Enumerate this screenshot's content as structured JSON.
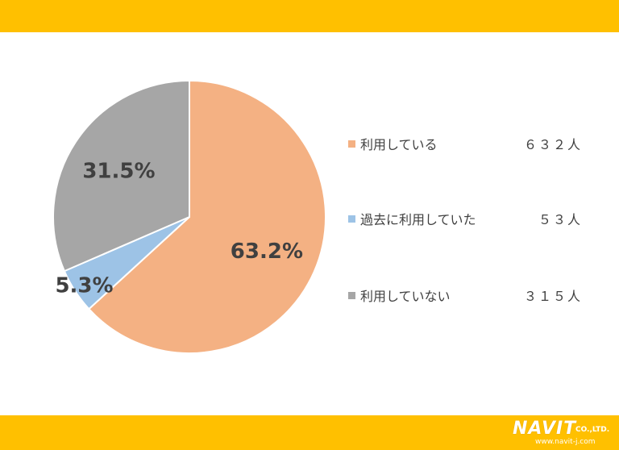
{
  "chart_data": {
    "type": "pie",
    "slices": [
      {
        "label": "利用している",
        "count": "６３２人",
        "percent": 63.2,
        "display": "63.2%",
        "color": "#F4B183"
      },
      {
        "label": "過去に利用していた",
        "count": "５３人",
        "percent": 5.3,
        "display": "5.3%",
        "color": "#9DC3E6"
      },
      {
        "label": "利用していない",
        "count": "３１５人",
        "percent": 31.5,
        "display": "31.5%",
        "color": "#A6A6A6"
      }
    ],
    "start": "12 o'clock",
    "direction": "clockwise",
    "legend": "right"
  },
  "colors": {
    "band": "#FFC000",
    "text": "#404040"
  },
  "logo": {
    "name": "NAVIT",
    "suffix": "CO.,LTD.",
    "url": "www.navit-j.com"
  }
}
